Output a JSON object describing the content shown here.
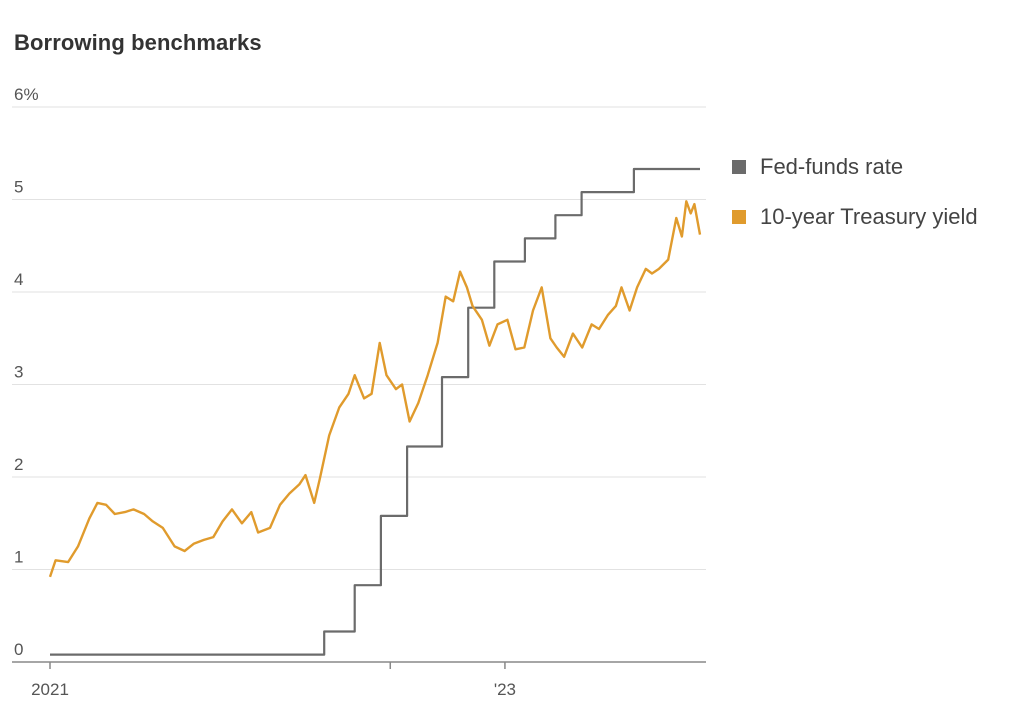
{
  "chart_data": {
    "type": "line",
    "title": "Borrowing benchmarks",
    "xlabel": "",
    "ylabel": "",
    "x_range": [
      "2021-01-01",
      "2023-11-10"
    ],
    "ylim": [
      0,
      6
    ],
    "y_ticks": [
      0,
      1,
      2,
      3,
      4,
      5,
      6
    ],
    "y_tick_labels": [
      "0",
      "1",
      "2",
      "3",
      "4",
      "5",
      "6%"
    ],
    "x_ticks": [
      {
        "date": "2021-01-01",
        "label": "2021"
      },
      {
        "date": "2022-07-01",
        "label": ""
      },
      {
        "date": "2023-01-01",
        "label": "'23"
      }
    ],
    "grid": "horizontal",
    "legend_position": "right",
    "series": [
      {
        "name": "Fed-funds rate",
        "color": "#6b6b6b",
        "step": true,
        "points": [
          [
            "2021-01-01",
            0.08
          ],
          [
            "2022-03-17",
            0.33
          ],
          [
            "2022-05-05",
            0.83
          ],
          [
            "2022-06-16",
            1.58
          ],
          [
            "2022-07-28",
            2.33
          ],
          [
            "2022-09-22",
            3.08
          ],
          [
            "2022-11-03",
            3.83
          ],
          [
            "2022-12-15",
            4.33
          ],
          [
            "2023-02-02",
            4.58
          ],
          [
            "2023-03-23",
            4.83
          ],
          [
            "2023-05-04",
            5.08
          ],
          [
            "2023-07-27",
            5.33
          ],
          [
            "2023-11-10",
            5.33
          ]
        ]
      },
      {
        "name": "10-year Treasury yield",
        "color": "#e09b2d",
        "step": false,
        "points": [
          [
            "2021-01-01",
            0.92
          ],
          [
            "2021-01-10",
            1.1
          ],
          [
            "2021-01-30",
            1.08
          ],
          [
            "2021-02-15",
            1.25
          ],
          [
            "2021-03-05",
            1.55
          ],
          [
            "2021-03-18",
            1.72
          ],
          [
            "2021-04-01",
            1.7
          ],
          [
            "2021-04-15",
            1.6
          ],
          [
            "2021-05-01",
            1.62
          ],
          [
            "2021-05-15",
            1.65
          ],
          [
            "2021-06-01",
            1.6
          ],
          [
            "2021-06-15",
            1.52
          ],
          [
            "2021-07-01",
            1.45
          ],
          [
            "2021-07-20",
            1.25
          ],
          [
            "2021-08-05",
            1.2
          ],
          [
            "2021-08-20",
            1.28
          ],
          [
            "2021-09-05",
            1.32
          ],
          [
            "2021-09-20",
            1.35
          ],
          [
            "2021-10-05",
            1.52
          ],
          [
            "2021-10-20",
            1.65
          ],
          [
            "2021-11-05",
            1.5
          ],
          [
            "2021-11-20",
            1.62
          ],
          [
            "2021-12-01",
            1.4
          ],
          [
            "2021-12-20",
            1.45
          ],
          [
            "2022-01-05",
            1.7
          ],
          [
            "2022-01-20",
            1.82
          ],
          [
            "2022-02-05",
            1.92
          ],
          [
            "2022-02-15",
            2.02
          ],
          [
            "2022-03-01",
            1.72
          ],
          [
            "2022-03-10",
            1.98
          ],
          [
            "2022-03-25",
            2.45
          ],
          [
            "2022-04-10",
            2.75
          ],
          [
            "2022-04-25",
            2.9
          ],
          [
            "2022-05-05",
            3.1
          ],
          [
            "2022-05-20",
            2.85
          ],
          [
            "2022-06-01",
            2.9
          ],
          [
            "2022-06-14",
            3.45
          ],
          [
            "2022-06-25",
            3.1
          ],
          [
            "2022-07-10",
            2.95
          ],
          [
            "2022-07-20",
            3.0
          ],
          [
            "2022-08-01",
            2.6
          ],
          [
            "2022-08-15",
            2.8
          ],
          [
            "2022-08-30",
            3.1
          ],
          [
            "2022-09-15",
            3.45
          ],
          [
            "2022-09-28",
            3.95
          ],
          [
            "2022-10-10",
            3.9
          ],
          [
            "2022-10-21",
            4.22
          ],
          [
            "2022-11-01",
            4.05
          ],
          [
            "2022-11-10",
            3.85
          ],
          [
            "2022-11-25",
            3.7
          ],
          [
            "2022-12-07",
            3.42
          ],
          [
            "2022-12-20",
            3.65
          ],
          [
            "2023-01-05",
            3.7
          ],
          [
            "2023-01-18",
            3.38
          ],
          [
            "2023-02-01",
            3.4
          ],
          [
            "2023-02-15",
            3.8
          ],
          [
            "2023-03-01",
            4.05
          ],
          [
            "2023-03-15",
            3.5
          ],
          [
            "2023-03-25",
            3.4
          ],
          [
            "2023-04-06",
            3.3
          ],
          [
            "2023-04-20",
            3.55
          ],
          [
            "2023-05-05",
            3.4
          ],
          [
            "2023-05-20",
            3.65
          ],
          [
            "2023-06-01",
            3.6
          ],
          [
            "2023-06-15",
            3.75
          ],
          [
            "2023-06-28",
            3.85
          ],
          [
            "2023-07-07",
            4.05
          ],
          [
            "2023-07-20",
            3.8
          ],
          [
            "2023-08-01",
            4.05
          ],
          [
            "2023-08-15",
            4.25
          ],
          [
            "2023-08-25",
            4.2
          ],
          [
            "2023-09-05",
            4.25
          ],
          [
            "2023-09-20",
            4.35
          ],
          [
            "2023-10-03",
            4.8
          ],
          [
            "2023-10-12",
            4.6
          ],
          [
            "2023-10-19",
            4.98
          ],
          [
            "2023-10-26",
            4.85
          ],
          [
            "2023-11-01",
            4.95
          ],
          [
            "2023-11-10",
            4.62
          ]
        ]
      }
    ]
  }
}
